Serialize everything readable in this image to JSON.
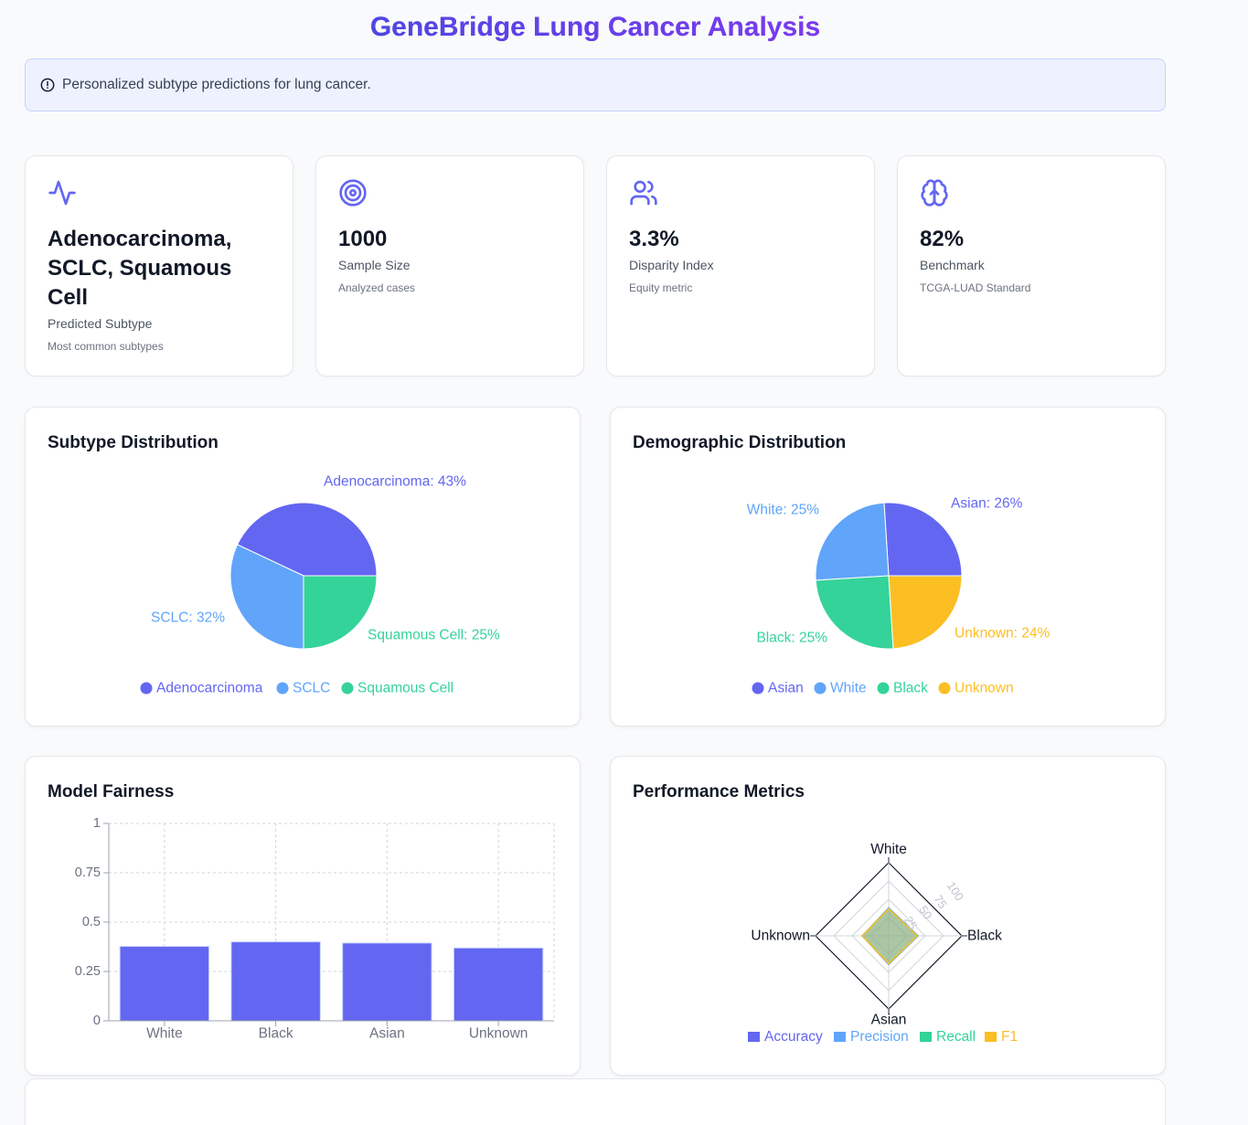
{
  "header": {
    "title": "GeneBridge Lung Cancer Analysis",
    "title_gradient": [
      "#4f46e5",
      "#7c3aed"
    ]
  },
  "alert": {
    "icon": "alert-circle-icon",
    "text": "Personalized subtype predictions for lung cancer."
  },
  "stats": [
    {
      "icon": "activity-icon",
      "value": "Adenocarcinoma, SCLC, Squamous Cell",
      "label": "Predicted Subtype",
      "sub": "Most common subtypes"
    },
    {
      "icon": "target-icon",
      "value": "1000",
      "label": "Sample Size",
      "sub": "Analyzed cases"
    },
    {
      "icon": "users-icon",
      "value": "3.3%",
      "label": "Disparity Index",
      "sub": "Equity metric"
    },
    {
      "icon": "brain-icon",
      "value": "82%",
      "label": "Benchmark",
      "sub": "TCGA-LUAD Standard"
    }
  ],
  "colors": {
    "accent": "#6366f1",
    "indigo": "#6366f1",
    "blue": "#60a5fa",
    "green": "#34d399",
    "amber": "#fbbf24"
  },
  "chart_data": [
    {
      "id": "subtype",
      "type": "pie",
      "title": "Subtype Distribution",
      "categories": [
        "Adenocarcinoma",
        "SCLC",
        "Squamous Cell"
      ],
      "values": [
        43,
        32,
        25
      ],
      "labels": [
        "Adenocarcinoma: 43%",
        "SCLC: 32%",
        "Squamous Cell: 25%"
      ],
      "colors": [
        "#6366f1",
        "#60a5fa",
        "#34d399"
      ],
      "legend": "bottom"
    },
    {
      "id": "demographic",
      "type": "pie",
      "title": "Demographic Distribution",
      "categories": [
        "Asian",
        "White",
        "Black",
        "Unknown"
      ],
      "values": [
        26,
        25,
        25,
        24
      ],
      "labels": [
        "Asian: 26%",
        "White: 25%",
        "Black: 25%",
        "Unknown: 24%"
      ],
      "colors": [
        "#6366f1",
        "#60a5fa",
        "#34d399",
        "#fbbf24"
      ],
      "legend": "bottom"
    },
    {
      "id": "fairness",
      "type": "bar",
      "title": "Model Fairness",
      "categories": [
        "White",
        "Black",
        "Asian",
        "Unknown"
      ],
      "values": [
        0.377,
        0.4,
        0.394,
        0.369
      ],
      "yticks": [
        "0",
        "0.25",
        "0.5",
        "0.75",
        "1"
      ],
      "ylim": [
        0,
        1
      ],
      "grid": true,
      "color": "#6366f1",
      "xlabel": "",
      "ylabel": ""
    },
    {
      "id": "performance",
      "type": "radar",
      "title": "Performance Metrics",
      "axes": [
        "White",
        "Black",
        "Asian",
        "Unknown"
      ],
      "radial_ticks": [
        "25",
        "50",
        "75",
        "100"
      ],
      "range": [
        0,
        100
      ],
      "series": [
        {
          "name": "Accuracy",
          "color": "#6366f1",
          "values": [
            38,
            40,
            39,
            36
          ]
        },
        {
          "name": "Precision",
          "color": "#60a5fa",
          "values": [
            38,
            40,
            39,
            36
          ]
        },
        {
          "name": "Recall",
          "color": "#34d399",
          "values": [
            37,
            39,
            38,
            36
          ]
        },
        {
          "name": "F1",
          "color": "#fbbf24",
          "values": [
            37,
            39,
            38,
            36
          ]
        }
      ],
      "legend": "bottom"
    }
  ]
}
